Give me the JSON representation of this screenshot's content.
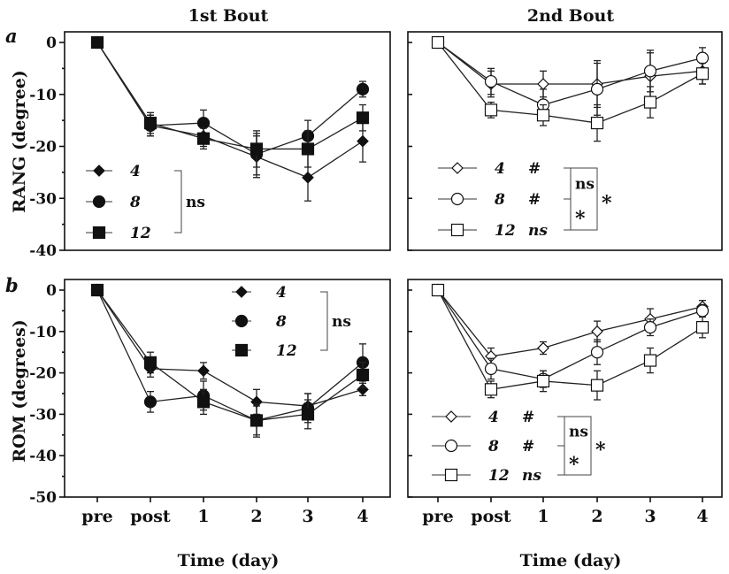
{
  "x_title": "Time (day)",
  "row_labels": [
    "RANG (degree)",
    "ROM (degrees)"
  ],
  "panel_letters": [
    "a",
    "b"
  ],
  "column_titles": [
    "1st Bout",
    "2nd Bout"
  ],
  "chart_data": [
    {
      "type": "line",
      "title": "1st Bout",
      "panel": "a",
      "ylabel": "RANG (degree)",
      "xlabel": "",
      "categories": [
        "pre",
        "post",
        "1",
        "2",
        "3",
        "4"
      ],
      "ylim": [
        -40,
        0
      ],
      "yticks": [
        0,
        -10,
        -20,
        -30,
        -40
      ],
      "series": [
        {
          "name": "4",
          "marker": "diamond-filled",
          "values": [
            0,
            -16,
            -18,
            -22,
            -26,
            -19
          ],
          "errors": [
            0,
            2,
            2,
            4,
            4.5,
            4
          ]
        },
        {
          "name": "8",
          "marker": "circle-filled",
          "values": [
            0,
            -16,
            -15.5,
            -21.5,
            -18,
            -9
          ],
          "errors": [
            0,
            2,
            2.5,
            4,
            3,
            1.5
          ]
        },
        {
          "name": "12",
          "marker": "square-filled",
          "values": [
            0,
            -15.5,
            -18.5,
            -20.5,
            -20.5,
            -14.5
          ],
          "errors": [
            0,
            2,
            2,
            3.5,
            3.5,
            2.5
          ]
        }
      ],
      "legend": {
        "position": "bottom-left",
        "group_labels": [
          {
            "text": "ns",
            "rows": [
              0,
              2
            ]
          }
        ]
      }
    },
    {
      "type": "line",
      "title": "2nd Bout",
      "panel": "a",
      "xlabel": "",
      "categories": [
        "pre",
        "post",
        "1",
        "2",
        "3",
        "4"
      ],
      "ylim": [
        -40,
        0
      ],
      "series": [
        {
          "name": "4",
          "marker": "diamond-open",
          "tag": "#",
          "values": [
            0,
            -8,
            -8,
            -8,
            -6.5,
            -5.5
          ],
          "errors": [
            0,
            2.5,
            2.5,
            4.5,
            4.5,
            2.5
          ]
        },
        {
          "name": "8",
          "marker": "circle-open",
          "tag": "#",
          "values": [
            0,
            -7.5,
            -12,
            -9,
            -5.5,
            -3
          ],
          "errors": [
            0,
            2.5,
            3,
            5,
            4,
            2
          ]
        },
        {
          "name": "12",
          "marker": "square-open",
          "tag": "ns",
          "values": [
            0,
            -13,
            -14,
            -15.5,
            -11.5,
            -6
          ],
          "errors": [
            0,
            1.5,
            2,
            3.5,
            3,
            2
          ]
        }
      ],
      "legend": {
        "position": "bottom-left",
        "group_labels": [
          {
            "text": "ns",
            "rows": [
              0,
              1
            ]
          },
          {
            "text": "*",
            "rows": [
              1,
              2
            ]
          },
          {
            "text": "*",
            "rows": [
              0,
              2
            ]
          }
        ]
      }
    },
    {
      "type": "line",
      "title": "1st Bout",
      "panel": "b",
      "ylabel": "ROM (degrees)",
      "xlabel": "Time (day)",
      "categories": [
        "pre",
        "post",
        "1",
        "2",
        "3",
        "4"
      ],
      "ylim": [
        -50,
        0
      ],
      "yticks": [
        0,
        -10,
        -20,
        -30,
        -40,
        -50
      ],
      "series": [
        {
          "name": "4",
          "marker": "diamond-filled",
          "values": [
            0,
            -19,
            -19.5,
            -27,
            -28,
            -24
          ],
          "errors": [
            0,
            2,
            2,
            3,
            3,
            1.5
          ]
        },
        {
          "name": "8",
          "marker": "circle-filled",
          "values": [
            0,
            -27,
            -25.5,
            -31.5,
            -28.5,
            -17.5
          ],
          "errors": [
            0,
            2.5,
            3.5,
            3.5,
            3.5,
            4.5
          ]
        },
        {
          "name": "12",
          "marker": "square-filled",
          "values": [
            0,
            -17.5,
            -27,
            -31.5,
            -30,
            -20.5
          ],
          "errors": [
            0,
            2.5,
            3,
            4,
            3.5,
            3
          ]
        }
      ],
      "legend": {
        "position": "top-right",
        "group_labels": [
          {
            "text": "ns",
            "rows": [
              0,
              2
            ]
          }
        ]
      }
    },
    {
      "type": "line",
      "title": "2nd Bout",
      "panel": "b",
      "xlabel": "Time (day)",
      "categories": [
        "pre",
        "post",
        "1",
        "2",
        "3",
        "4"
      ],
      "ylim": [
        -50,
        0
      ],
      "series": [
        {
          "name": "4",
          "marker": "diamond-open",
          "tag": "#",
          "values": [
            0,
            -16,
            -14,
            -10,
            -7,
            -4
          ],
          "errors": [
            0,
            2,
            1.5,
            2.5,
            2.5,
            1.5
          ]
        },
        {
          "name": "8",
          "marker": "circle-open",
          "tag": "#",
          "values": [
            0,
            -19,
            -21.5,
            -15,
            -9,
            -5
          ],
          "errors": [
            0,
            2.5,
            2,
            3,
            2,
            1.5
          ]
        },
        {
          "name": "12",
          "marker": "square-open",
          "tag": "ns",
          "values": [
            0,
            -24,
            -22,
            -23,
            -17,
            -9
          ],
          "errors": [
            0,
            2,
            2.5,
            3.5,
            3,
            2.5
          ]
        }
      ],
      "legend": {
        "position": "bottom-left",
        "group_labels": [
          {
            "text": "ns",
            "rows": [
              0,
              1
            ]
          },
          {
            "text": "*",
            "rows": [
              1,
              2
            ]
          },
          {
            "text": "*",
            "rows": [
              0,
              2
            ]
          }
        ]
      }
    }
  ]
}
